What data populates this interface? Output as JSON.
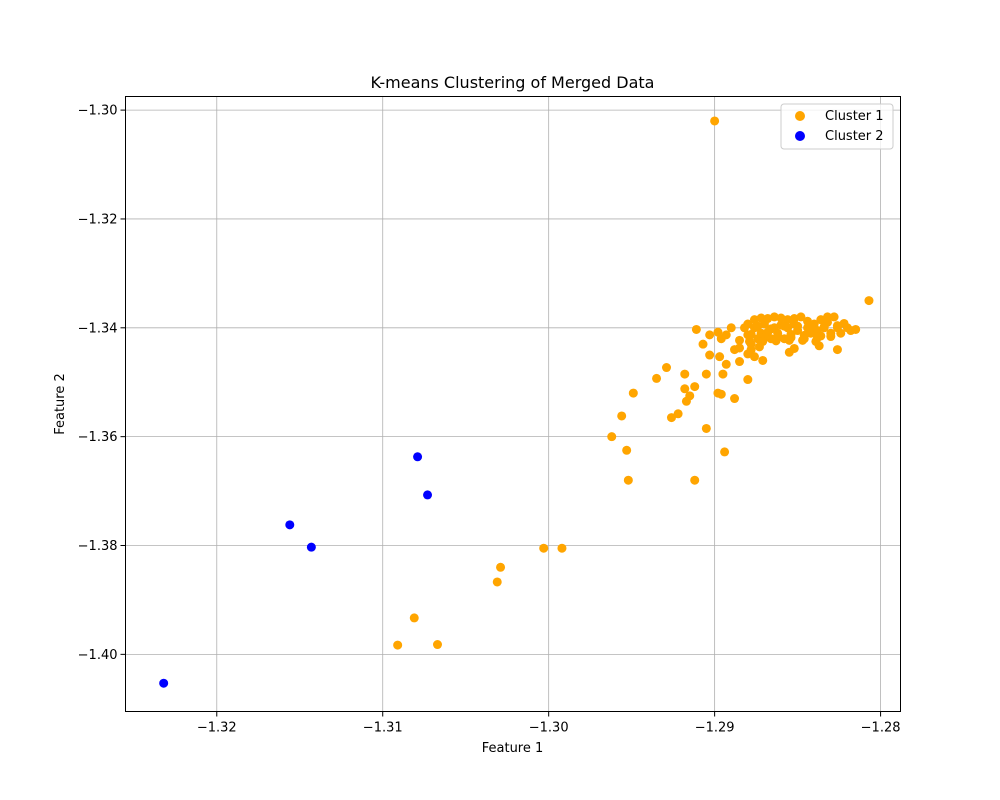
{
  "chart_data": {
    "type": "scatter",
    "title": "K-means Clustering of Merged Data",
    "xlabel": "Feature 1",
    "ylabel": "Feature 2",
    "xlim": [
      -1.3255,
      -1.2788
    ],
    "ylim": [
      -1.4105,
      -1.2975
    ],
    "xticks": [
      -1.32,
      -1.31,
      -1.3,
      -1.29,
      -1.28
    ],
    "xtick_labels": [
      "−1.32",
      "−1.31",
      "−1.30",
      "−1.29",
      "−1.28"
    ],
    "yticks": [
      -1.3,
      -1.32,
      -1.34,
      -1.36,
      -1.38,
      -1.4
    ],
    "ytick_labels": [
      "−1.30",
      "−1.32",
      "−1.34",
      "−1.36",
      "−1.38",
      "−1.40"
    ],
    "grid": true,
    "legend_position": "top-right",
    "series": [
      {
        "name": "Cluster 1",
        "color": "#FFA500",
        "points": [
          [
            -1.29,
            -1.302
          ],
          [
            -1.2807,
            -1.335
          ],
          [
            -1.2911,
            -1.3403
          ],
          [
            -1.2907,
            -1.343
          ],
          [
            -1.2903,
            -1.3413
          ],
          [
            -1.2897,
            -1.3453
          ],
          [
            -1.2896,
            -1.342
          ],
          [
            -1.2893,
            -1.3413
          ],
          [
            -1.289,
            -1.34
          ],
          [
            -1.2888,
            -1.344
          ],
          [
            -1.2885,
            -1.3423
          ],
          [
            -1.2882,
            -1.34
          ],
          [
            -1.288,
            -1.3413
          ],
          [
            -1.2878,
            -1.343
          ],
          [
            -1.2876,
            -1.34
          ],
          [
            -1.2874,
            -1.342
          ],
          [
            -1.2872,
            -1.341
          ],
          [
            -1.287,
            -1.3393
          ],
          [
            -1.2868,
            -1.3408
          ],
          [
            -1.2866,
            -1.342
          ],
          [
            -1.2864,
            -1.34
          ],
          [
            -1.2862,
            -1.341
          ],
          [
            -1.286,
            -1.3395
          ],
          [
            -1.2858,
            -1.342
          ],
          [
            -1.2856,
            -1.34
          ],
          [
            -1.2854,
            -1.3412
          ],
          [
            -1.2852,
            -1.3393
          ],
          [
            -1.285,
            -1.3405
          ],
          [
            -1.2848,
            -1.338
          ],
          [
            -1.2846,
            -1.342
          ],
          [
            -1.2844,
            -1.34
          ],
          [
            -1.2842,
            -1.341
          ],
          [
            -1.284,
            -1.3393
          ],
          [
            -1.2838,
            -1.3405
          ],
          [
            -1.2836,
            -1.3415
          ],
          [
            -1.2834,
            -1.34
          ],
          [
            -1.2832,
            -1.339
          ],
          [
            -1.283,
            -1.341
          ],
          [
            -1.2828,
            -1.338
          ],
          [
            -1.2826,
            -1.34
          ],
          [
            -1.2824,
            -1.341
          ],
          [
            -1.2822,
            -1.3392
          ],
          [
            -1.282,
            -1.34
          ],
          [
            -1.2818,
            -1.3405
          ],
          [
            -1.2815,
            -1.3403
          ],
          [
            -1.288,
            -1.3393
          ],
          [
            -1.2876,
            -1.3385
          ],
          [
            -1.2872,
            -1.3382
          ],
          [
            -1.2868,
            -1.3383
          ],
          [
            -1.2864,
            -1.338
          ],
          [
            -1.286,
            -1.3382
          ],
          [
            -1.2856,
            -1.3385
          ],
          [
            -1.2852,
            -1.3383
          ],
          [
            -1.2844,
            -1.3388
          ],
          [
            -1.2836,
            -1.3385
          ],
          [
            -1.2832,
            -1.338
          ],
          [
            -1.2878,
            -1.3412
          ],
          [
            -1.287,
            -1.3418
          ],
          [
            -1.2862,
            -1.3416
          ],
          [
            -1.2854,
            -1.3418
          ],
          [
            -1.2846,
            -1.3414
          ],
          [
            -1.2838,
            -1.3418
          ],
          [
            -1.283,
            -1.3416
          ],
          [
            -1.2874,
            -1.3397
          ],
          [
            -1.2866,
            -1.3402
          ],
          [
            -1.2858,
            -1.3397
          ],
          [
            -1.285,
            -1.3397
          ],
          [
            -1.2842,
            -1.3398
          ],
          [
            -1.2834,
            -1.3398
          ],
          [
            -1.2826,
            -1.3396
          ],
          [
            -1.2879,
            -1.3425
          ],
          [
            -1.2871,
            -1.3425
          ],
          [
            -1.2863,
            -1.3424
          ],
          [
            -1.2855,
            -1.3423
          ],
          [
            -1.2847,
            -1.3423
          ],
          [
            -1.2839,
            -1.3425
          ],
          [
            -1.2885,
            -1.3437
          ],
          [
            -1.2878,
            -1.344
          ],
          [
            -1.2873,
            -1.3435
          ],
          [
            -1.288,
            -1.3448
          ],
          [
            -1.2876,
            -1.3453
          ],
          [
            -1.2871,
            -1.346
          ],
          [
            -1.2855,
            -1.3445
          ],
          [
            -1.2852,
            -1.3438
          ],
          [
            -1.2837,
            -1.3433
          ],
          [
            -1.2826,
            -1.344
          ],
          [
            -1.2885,
            -1.3462
          ],
          [
            -1.2893,
            -1.3467
          ],
          [
            -1.2903,
            -1.345
          ],
          [
            -1.2898,
            -1.3408
          ],
          [
            -1.2929,
            -1.3473
          ],
          [
            -1.2935,
            -1.3493
          ],
          [
            -1.2918,
            -1.3485
          ],
          [
            -1.2905,
            -1.3485
          ],
          [
            -1.2895,
            -1.3485
          ],
          [
            -1.288,
            -1.3495
          ],
          [
            -1.2918,
            -1.3512
          ],
          [
            -1.2912,
            -1.3508
          ],
          [
            -1.2915,
            -1.3525
          ],
          [
            -1.2917,
            -1.3535
          ],
          [
            -1.2898,
            -1.352
          ],
          [
            -1.2896,
            -1.3522
          ],
          [
            -1.2888,
            -1.353
          ],
          [
            -1.2949,
            -1.352
          ],
          [
            -1.2956,
            -1.3562
          ],
          [
            -1.2922,
            -1.3558
          ],
          [
            -1.2926,
            -1.3565
          ],
          [
            -1.2905,
            -1.3585
          ],
          [
            -1.2962,
            -1.36
          ],
          [
            -1.2953,
            -1.3625
          ],
          [
            -1.2952,
            -1.368
          ],
          [
            -1.2912,
            -1.368
          ],
          [
            -1.2894,
            -1.3628
          ],
          [
            -1.3003,
            -1.3805
          ],
          [
            -1.2992,
            -1.3805
          ],
          [
            -1.3029,
            -1.384
          ],
          [
            -1.3031,
            -1.3867
          ],
          [
            -1.3081,
            -1.3933
          ],
          [
            -1.3091,
            -1.3983
          ],
          [
            -1.3067,
            -1.3982
          ]
        ]
      },
      {
        "name": "Cluster 2",
        "color": "#0000FF",
        "points": [
          [
            -1.3079,
            -1.3637
          ],
          [
            -1.3073,
            -1.3707
          ],
          [
            -1.3156,
            -1.3762
          ],
          [
            -1.3143,
            -1.3803
          ],
          [
            -1.3232,
            -1.4053
          ]
        ]
      }
    ]
  }
}
